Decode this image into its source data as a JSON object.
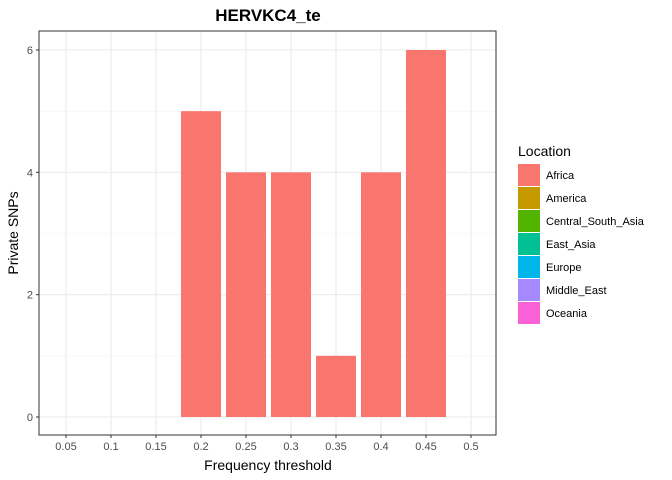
{
  "chart_data": {
    "type": "bar",
    "title": "HERVKC4_te",
    "xlabel": "Frequency threshold",
    "ylabel": "Private SNPs",
    "x_ticks": [
      "0.05",
      "0.1",
      "0.15",
      "0.2",
      "0.25",
      "0.3",
      "0.35",
      "0.4",
      "0.45",
      "0.5"
    ],
    "y_ticks": [
      "0",
      "2",
      "4",
      "6"
    ],
    "ylim": [
      0,
      6
    ],
    "grid": true,
    "categories": [
      "0.2",
      "0.25",
      "0.3",
      "0.35",
      "0.4",
      "0.45"
    ],
    "series": [
      {
        "name": "Africa",
        "color": "#F8766D",
        "values": [
          5,
          4,
          4,
          1,
          4,
          6
        ]
      }
    ],
    "legend": {
      "title": "Location",
      "position": "right",
      "entries": [
        {
          "label": "Africa",
          "color": "#F8766D"
        },
        {
          "label": "America",
          "color": "#C49A00"
        },
        {
          "label": "Central_South_Asia",
          "color": "#53B400"
        },
        {
          "label": "East_Asia",
          "color": "#00C094"
        },
        {
          "label": "Europe",
          "color": "#00B6EB"
        },
        {
          "label": "Middle_East",
          "color": "#A58AFF"
        },
        {
          "label": "Oceania",
          "color": "#FB61D7"
        }
      ]
    }
  }
}
